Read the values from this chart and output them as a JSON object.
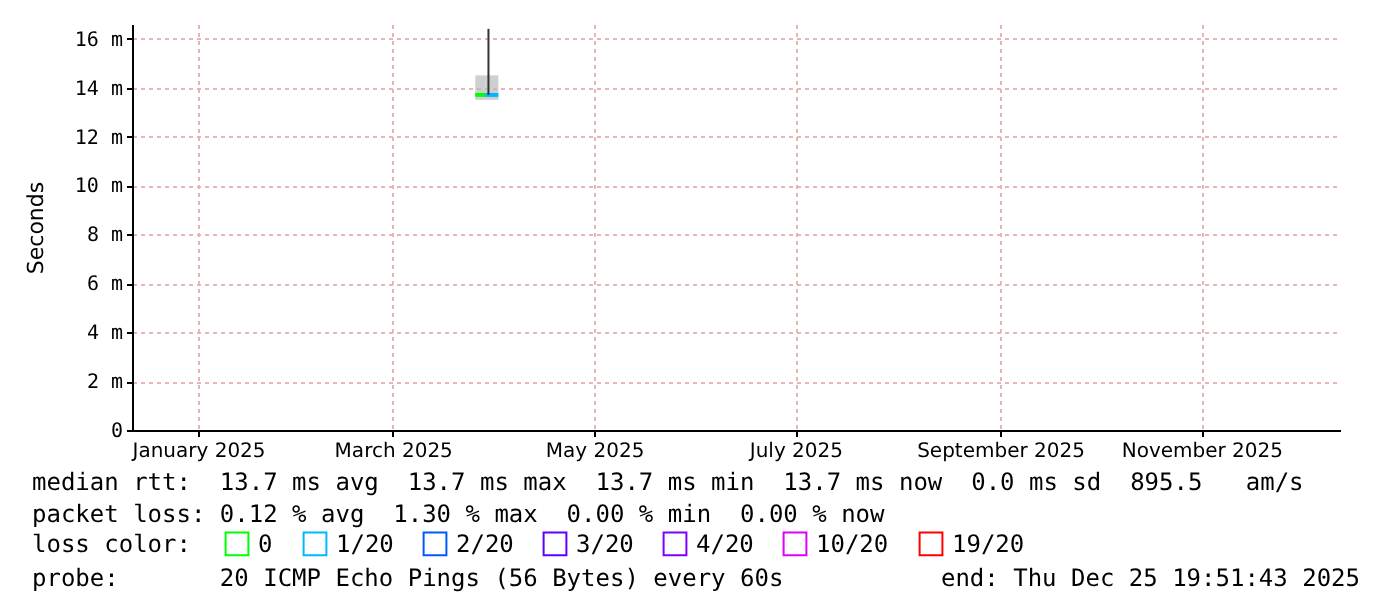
{
  "chart_data": {
    "type": "line",
    "ylabel": "Seconds",
    "legend_title": "loss color:",
    "legend": "bottom",
    "grid": true,
    "line_style": "solid",
    "marker": "none",
    "xlim": [
      "2024-12-12",
      "2025-12-13"
    ],
    "xticks": [
      {
        "value": "2025-01-01",
        "label": "January 2025"
      },
      {
        "value": "2025-03-01",
        "label": "March 2025"
      },
      {
        "value": "2025-05-01",
        "label": "May 2025"
      },
      {
        "value": "2025-07-01",
        "label": "July 2025"
      },
      {
        "value": "2025-09-01",
        "label": "September 2025"
      },
      {
        "value": "2025-11-01",
        "label": "November 2025"
      }
    ],
    "ylim": [
      0,
      16.6
    ],
    "yticks": [
      0,
      {
        "value": 2,
        "label": "2 m"
      },
      {
        "value": 4,
        "label": "4 m"
      },
      {
        "value": 6,
        "label": "6 m"
      },
      {
        "value": 8,
        "label": "8 m"
      },
      {
        "value": 10,
        "label": "10 m"
      },
      {
        "value": 12,
        "label": "12 m"
      },
      {
        "value": 14,
        "label": "14 m"
      },
      {
        "value": 16,
        "label": "16 m"
      }
    ],
    "series": [
      {
        "name": "0",
        "color": "#00ff00",
        "x": [
          "2025-03-26",
          "2025-03-29"
        ],
        "values": [
          13.7,
          13.7
        ],
        "lower": [
          13.5,
          13.5
        ],
        "upper": [
          14.5,
          14.5
        ]
      },
      {
        "name": "1/20",
        "color": "#00b8ff",
        "x": [
          "2025-03-29",
          "2025-04-02"
        ],
        "values": [
          13.7,
          13.7
        ],
        "lower": [
          13.5,
          13.5
        ],
        "upper": [
          14.5,
          14.5
        ]
      },
      {
        "name": "2/20",
        "color": "#0059ff"
      },
      {
        "name": "3/20",
        "color": "#5e00ff"
      },
      {
        "name": "4/20",
        "color": "#7e00ff"
      },
      {
        "name": "10/20",
        "color": "#dd00ff"
      },
      {
        "name": "19/20",
        "color": "#ff0000"
      },
      {
        "color": "#333333",
        "x": [
          "2025-03-30",
          "2025-03-30"
        ],
        "values": [
          13.7,
          16.4
        ]
      }
    ],
    "annotations": [
      "median rtt:  13.7 ms avg  13.7 ms max  13.7 ms min  13.7 ms now  0.0 ms sd  895.5   am/s",
      "packet loss: 0.12 % avg  1.30 % max  0.00 % min  0.00 % now",
      "probe:       20 ICMP Echo Pings (56 Bytes) every 60s",
      "end: Thu Dec 25 19:51:43 2025"
    ]
  }
}
